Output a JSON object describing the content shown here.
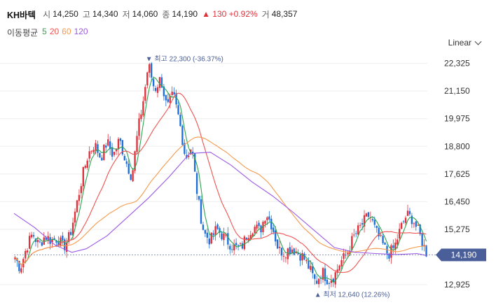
{
  "header": {
    "name": "KH바텍",
    "open_label": "시",
    "open": "14,250",
    "high_label": "고",
    "high": "14,340",
    "low_label": "저",
    "low": "14,060",
    "close_label": "종",
    "close": "14,190",
    "change": "▲ 130 +0.92%",
    "volume_label": "거",
    "volume": "48,357"
  },
  "ma_legend": {
    "title": "이동평균",
    "items": [
      {
        "label": "5",
        "color": "#2ea44f"
      },
      {
        "label": "20",
        "color": "#ef5350"
      },
      {
        "label": "60",
        "color": "#f59a4c"
      },
      {
        "label": "120",
        "color": "#9b59e6"
      }
    ]
  },
  "scale_selector": "Linear",
  "colors": {
    "up": "#e0313b",
    "down": "#1e6fd9",
    "current_bg": "#4a5f99",
    "annotation": "#4a5f99"
  },
  "chart_data": {
    "type": "candlestick",
    "x_range": [
      0,
      200
    ],
    "ylim": [
      12600,
      22700
    ],
    "y_ticks": [
      "22,325",
      "21,150",
      "19,975",
      "18,800",
      "17,625",
      "16,450",
      "15,275",
      "12,925"
    ],
    "y_tick_values": [
      22325,
      21150,
      19975,
      18800,
      17625,
      16450,
      15275,
      12925
    ],
    "grid": true,
    "current_price": {
      "value": 14190,
      "label": "14,190"
    },
    "high_annotation": {
      "label": "최고 22,300 (-36.37%)",
      "value": 22300,
      "x": 65
    },
    "low_annotation": {
      "label": "최저 12,640 (12.26%)",
      "value": 12640,
      "x": 146
    },
    "price_path": [
      [
        0,
        14200
      ],
      [
        3,
        13600
      ],
      [
        6,
        14500
      ],
      [
        9,
        15100
      ],
      [
        12,
        14600
      ],
      [
        15,
        15000
      ],
      [
        18,
        14800
      ],
      [
        21,
        14900
      ],
      [
        24,
        14500
      ],
      [
        27,
        15000
      ],
      [
        30,
        16200
      ],
      [
        33,
        17500
      ],
      [
        36,
        18500
      ],
      [
        39,
        18900
      ],
      [
        42,
        18300
      ],
      [
        45,
        19000
      ],
      [
        48,
        18400
      ],
      [
        51,
        19100
      ],
      [
        54,
        18200
      ],
      [
        57,
        17500
      ],
      [
        60,
        19500
      ],
      [
        63,
        21000
      ],
      [
        65,
        22300
      ],
      [
        68,
        21200
      ],
      [
        71,
        21700
      ],
      [
        74,
        20400
      ],
      [
        77,
        21000
      ],
      [
        80,
        19900
      ],
      [
        83,
        18300
      ],
      [
        86,
        18800
      ],
      [
        88,
        17200
      ],
      [
        90,
        16000
      ],
      [
        92,
        15100
      ],
      [
        95,
        14800
      ],
      [
        98,
        15300
      ],
      [
        101,
        15000
      ],
      [
        104,
        14700
      ],
      [
        107,
        14500
      ],
      [
        110,
        14500
      ],
      [
        113,
        15100
      ],
      [
        116,
        15400
      ],
      [
        119,
        15200
      ],
      [
        122,
        16000
      ],
      [
        125,
        15400
      ],
      [
        128,
        14400
      ],
      [
        131,
        14300
      ],
      [
        134,
        14500
      ],
      [
        137,
        14300
      ],
      [
        140,
        14100
      ],
      [
        143,
        13600
      ],
      [
        146,
        13000
      ],
      [
        149,
        13500
      ],
      [
        152,
        13100
      ],
      [
        155,
        13300
      ],
      [
        158,
        13900
      ],
      [
        161,
        14200
      ],
      [
        164,
        14900
      ],
      [
        167,
        15300
      ],
      [
        170,
        15700
      ],
      [
        172,
        15900
      ],
      [
        175,
        15200
      ],
      [
        178,
        14700
      ],
      [
        181,
        14200
      ],
      [
        184,
        14500
      ],
      [
        187,
        15300
      ],
      [
        190,
        15900
      ],
      [
        193,
        15700
      ],
      [
        196,
        15100
      ],
      [
        199,
        14400
      ],
      [
        200,
        14190
      ]
    ],
    "series": [
      {
        "name": "5",
        "color": "#2ea44f",
        "smoothing": 5
      },
      {
        "name": "20",
        "color": "#ef5350",
        "smoothing": 20
      },
      {
        "name": "60",
        "color": "#f59a4c",
        "smoothing": 60
      },
      {
        "name": "120",
        "color": "#9b59e6",
        "values": [
          [
            0,
            15950
          ],
          [
            10,
            15350
          ],
          [
            20,
            14600
          ],
          [
            28,
            14300
          ],
          [
            35,
            14450
          ],
          [
            45,
            15000
          ],
          [
            55,
            15800
          ],
          [
            65,
            16600
          ],
          [
            75,
            17500
          ],
          [
            85,
            18500
          ],
          [
            95,
            18550
          ],
          [
            105,
            18000
          ],
          [
            115,
            17300
          ],
          [
            125,
            16700
          ],
          [
            135,
            16000
          ],
          [
            145,
            15250
          ],
          [
            155,
            14500
          ],
          [
            165,
            14300
          ],
          [
            175,
            14250
          ],
          [
            185,
            14200
          ],
          [
            195,
            14250
          ],
          [
            200,
            14150
          ]
        ]
      }
    ]
  }
}
